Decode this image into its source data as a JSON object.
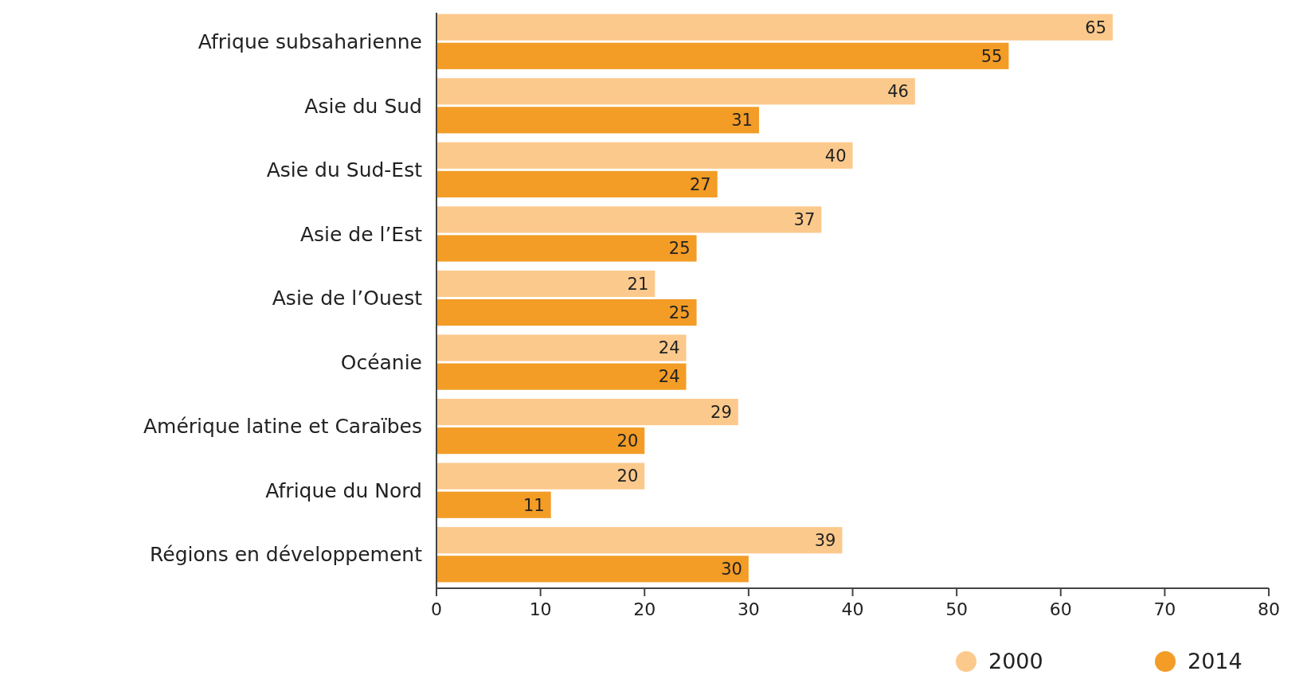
{
  "chart_data": {
    "type": "bar",
    "orientation": "horizontal",
    "categories": [
      "Afrique subsaharienne",
      "Asie du Sud",
      "Asie du Sud-Est",
      "Asie de l’Est",
      "Asie de l’Ouest",
      "Océanie",
      "Amérique latine et Caraïbes",
      "Afrique du Nord",
      "Régions en développement"
    ],
    "series": [
      {
        "name": "2000",
        "color": "#fcc98c",
        "values": [
          65,
          46,
          40,
          37,
          21,
          24,
          29,
          20,
          39
        ]
      },
      {
        "name": "2014",
        "color": "#f39c26",
        "values": [
          55,
          31,
          27,
          25,
          25,
          24,
          20,
          11,
          30
        ]
      }
    ],
    "xlim": [
      0,
      80
    ],
    "xticks": [
      0,
      10,
      20,
      30,
      40,
      50,
      60,
      70,
      80
    ],
    "data_labels": true,
    "grid": false,
    "legend": "bottom right"
  }
}
